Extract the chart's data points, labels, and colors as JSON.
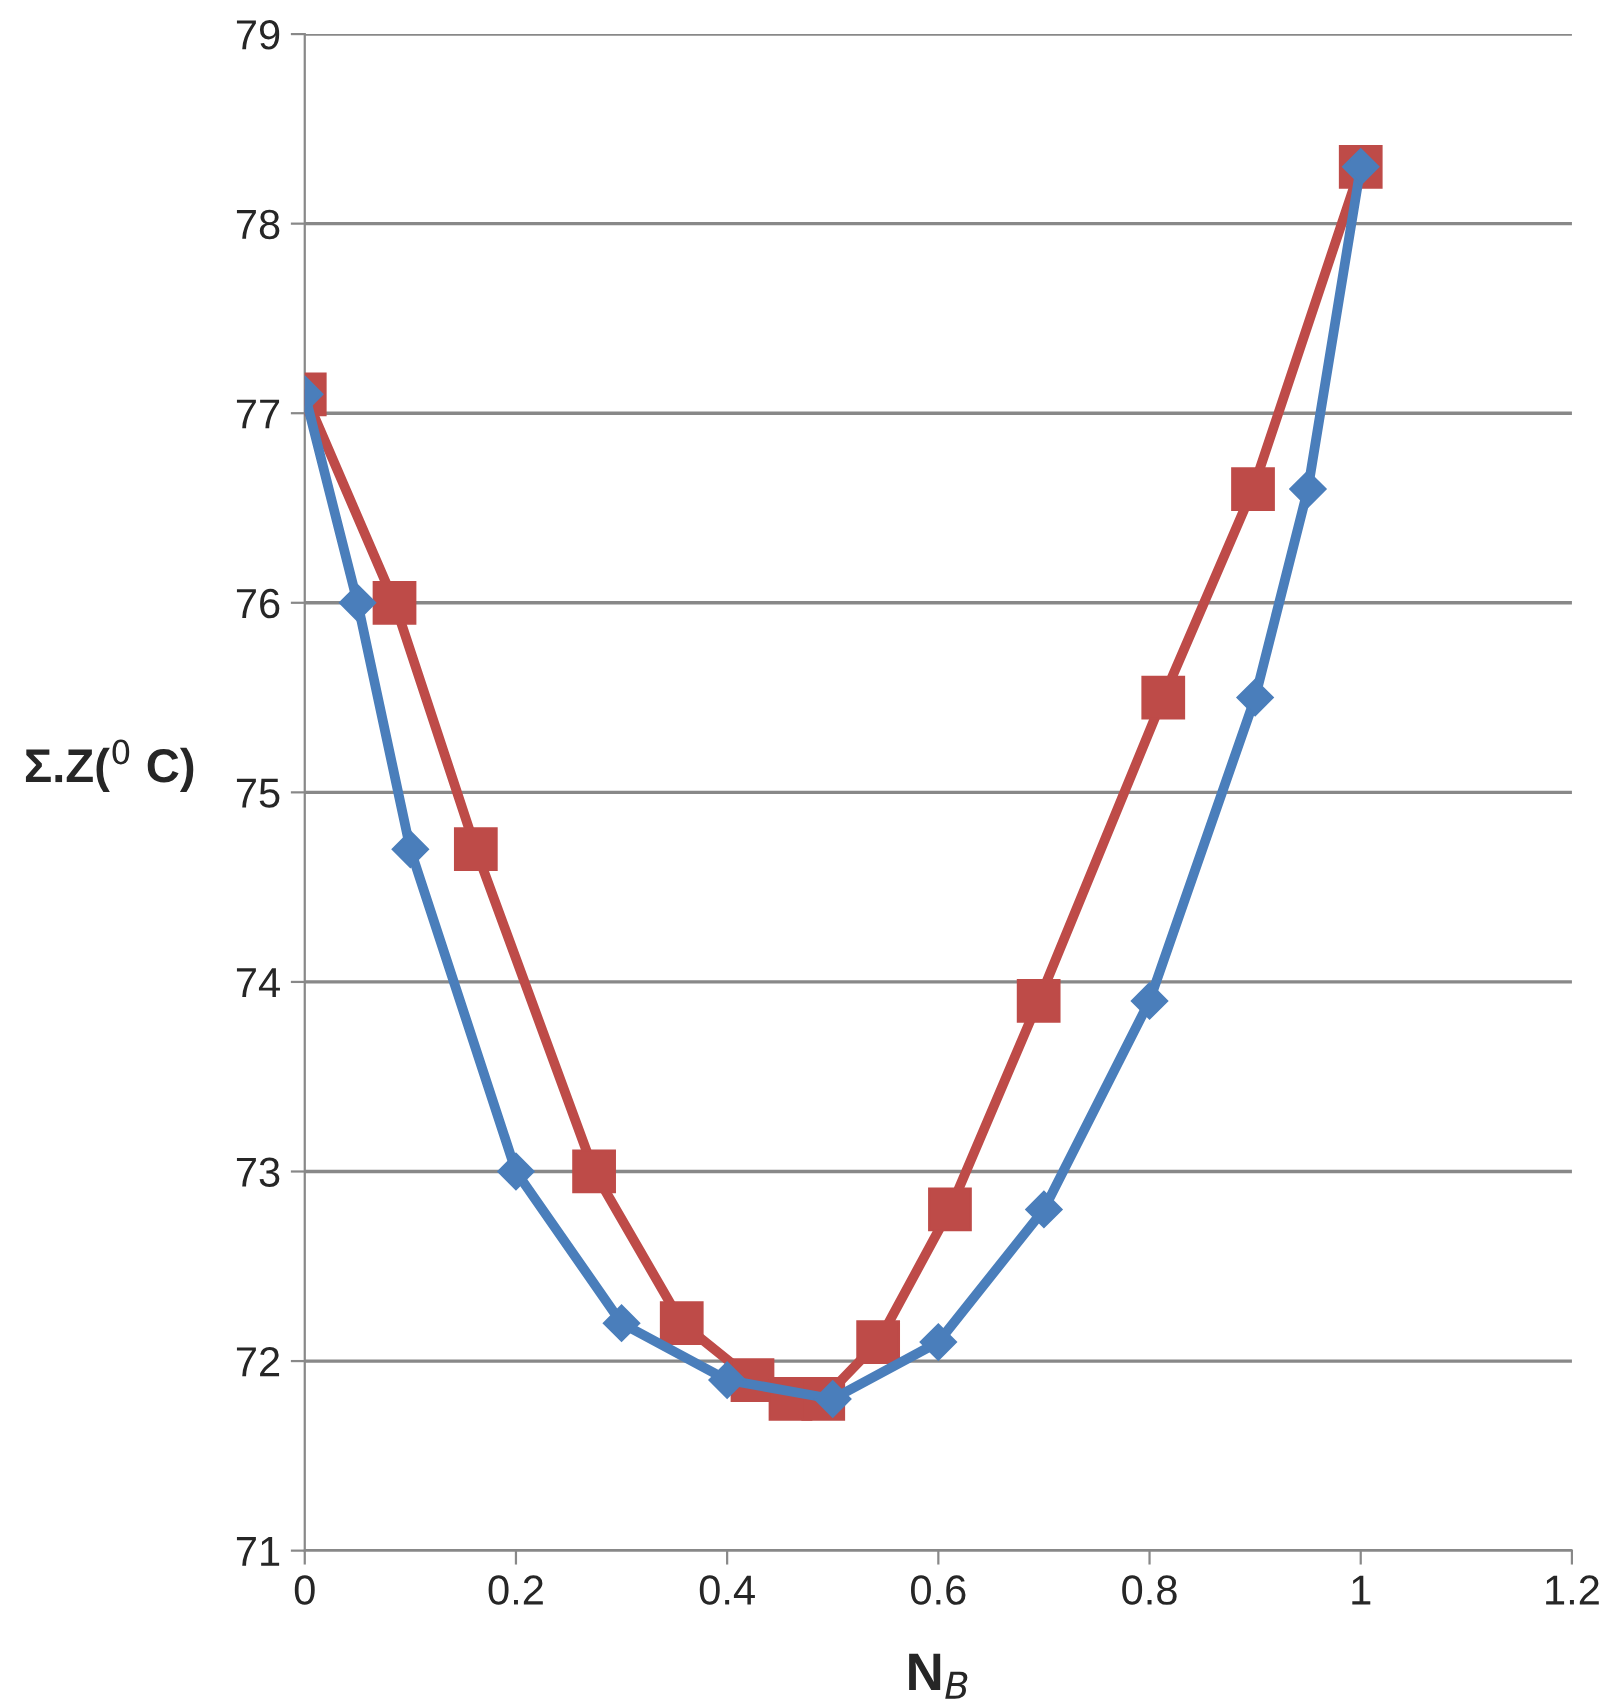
{
  "chart_data": {
    "type": "line",
    "xlabel": "N$_{B}$",
    "ylabel": "Σ.Z($^{0}$ C)",
    "xlim": [
      0,
      1.2
    ],
    "xticks": [
      0,
      0.2,
      0.4,
      0.6,
      0.8,
      1,
      1.2
    ],
    "ylim": [
      71,
      79
    ],
    "yticks": [
      71,
      72,
      73,
      74,
      75,
      76,
      77,
      78,
      79
    ],
    "grid": "y",
    "legend": false,
    "line_style": "solid",
    "series": [
      {
        "color": "#4a7ebb",
        "marker": "diamond",
        "x": [
          0,
          0.05,
          0.1,
          0.2,
          0.3,
          0.4,
          0.5,
          0.6,
          0.7,
          0.8,
          0.9,
          0.95,
          1
        ],
        "values": [
          77.1,
          76.0,
          74.7,
          73.0,
          72.2,
          71.9,
          71.8,
          72.1,
          72.8,
          73.9,
          75.5,
          76.6,
          78.3
        ]
      },
      {
        "color": "#be4b48",
        "marker": "square",
        "x": [
          0,
          0.085,
          0.162,
          0.274,
          0.357,
          0.424,
          0.46,
          0.491,
          0.543,
          0.611,
          0.695,
          0.813,
          0.898,
          1
        ],
        "values": [
          77.1,
          76.0,
          74.7,
          73.0,
          72.2,
          71.9,
          71.8,
          71.8,
          72.1,
          72.8,
          73.9,
          75.5,
          76.6,
          78.3
        ]
      }
    ]
  }
}
